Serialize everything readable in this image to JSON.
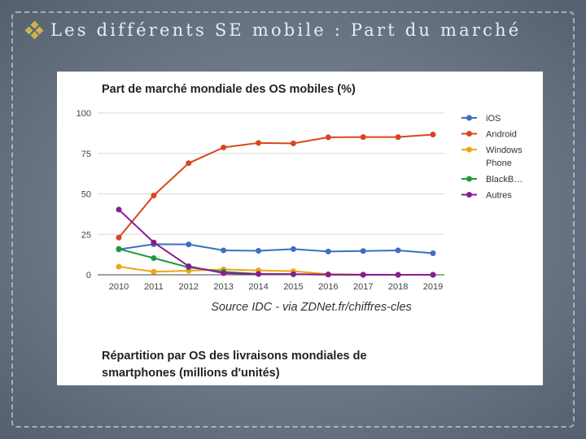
{
  "slide": {
    "title": "Les différents SE mobile : Part du marché"
  },
  "chart_data": {
    "type": "line",
    "title": "Part de marché mondiale des OS mobiles (%)",
    "subtitle": "Source IDC - via ZDNet.fr/chiffres-cles",
    "xlabel": "",
    "ylabel": "",
    "ylim": [
      0,
      100
    ],
    "yticks": [
      0,
      25,
      50,
      75,
      100
    ],
    "grid": true,
    "legend_position": "right",
    "x": [
      "2010",
      "2011",
      "2012",
      "2013",
      "2014",
      "2015",
      "2016",
      "2017",
      "2018",
      "2019"
    ],
    "series": [
      {
        "name": "iOS",
        "color": "#3b6fc4",
        "values": [
          15.7,
          18.9,
          18.8,
          15.1,
          14.8,
          15.9,
          14.4,
          14.7,
          15.1,
          13.3
        ]
      },
      {
        "name": "Android",
        "color": "#d9461d",
        "values": [
          23,
          49,
          69,
          78.7,
          81.5,
          81.2,
          85,
          85.1,
          85.1,
          86.7
        ]
      },
      {
        "name": "Windows Phone",
        "color": "#f2a413",
        "values": [
          5,
          1.9,
          2.5,
          3.3,
          2.7,
          2.2,
          0.4,
          0.1,
          0,
          0
        ]
      },
      {
        "name": "BlackB…",
        "color": "#1e9a3a",
        "values": [
          16,
          10.3,
          4.6,
          1.9,
          0.5,
          0.3,
          0.1,
          0,
          0,
          0
        ]
      },
      {
        "name": "Autres",
        "color": "#8a1a96",
        "values": [
          40.3,
          20,
          5.3,
          1,
          0.5,
          0.4,
          0.1,
          0,
          0,
          0
        ]
      }
    ]
  },
  "second_chart": {
    "title": "Répartition par OS des livraisons mondiales de smartphones (millions d'unités)"
  }
}
